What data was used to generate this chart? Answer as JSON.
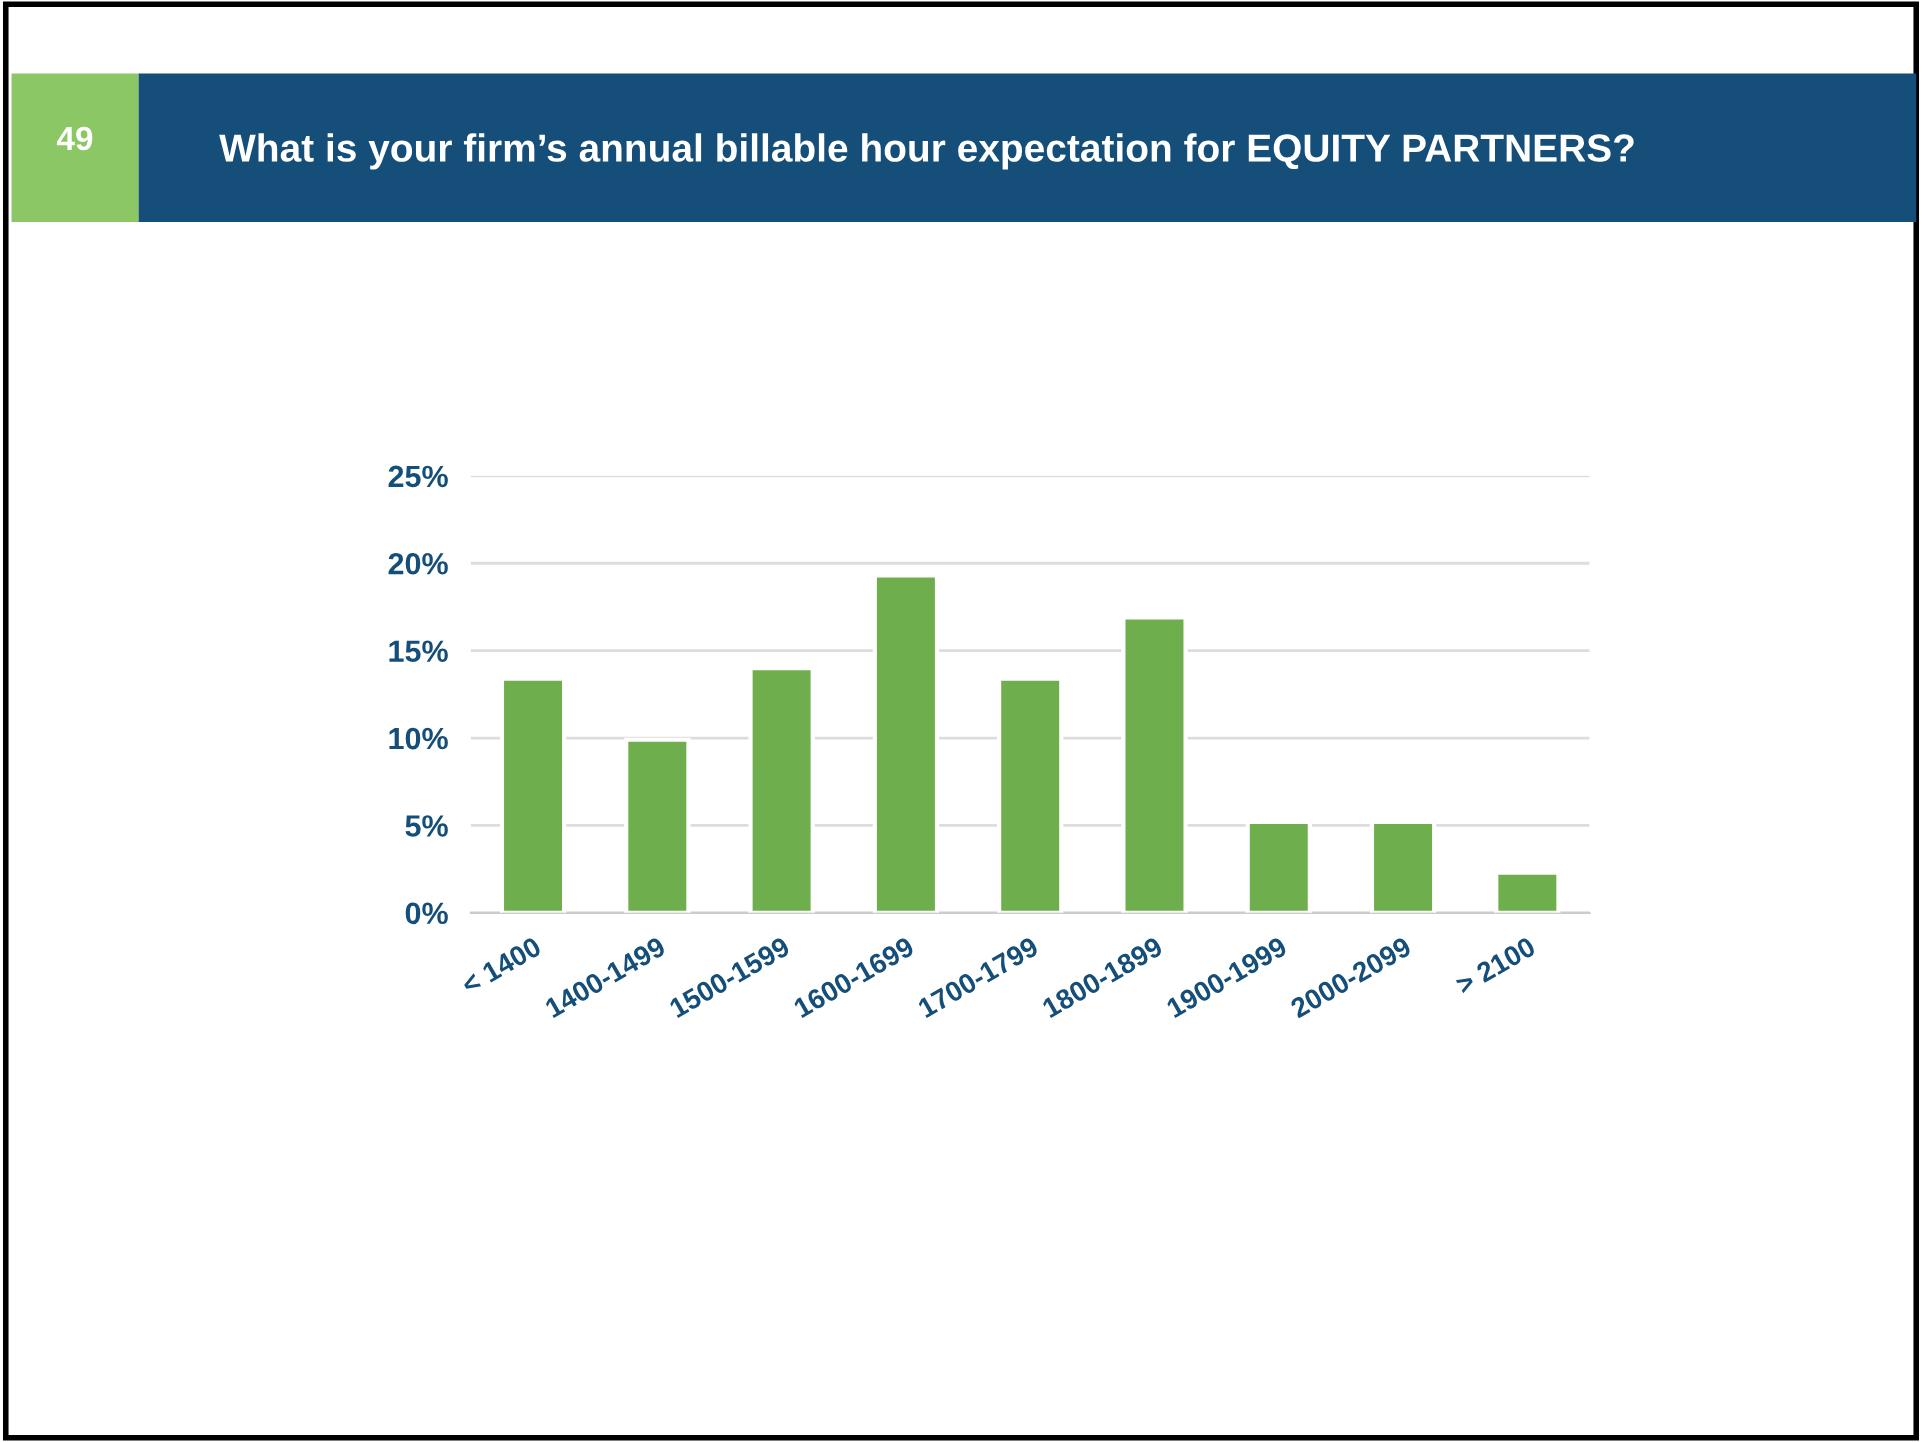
{
  "chart_data": {
    "type": "bar",
    "title": "What is your firm’s annual billable hour expectation for EQUITY PARTNERS?",
    "annotations": [
      "49"
    ],
    "categories": [
      "< 1400",
      "1400-1499",
      "1500-1599",
      "1600-1699",
      "1700-1799",
      "1800-1899",
      "1900-1999",
      "2000-2099",
      "> 2100"
    ],
    "values": [
      13.4,
      9.9,
      14.0,
      19.3,
      13.4,
      16.9,
      5.2,
      5.2,
      2.3
    ],
    "color": "#6fae4c",
    "ylim": [
      0,
      25
    ],
    "yticks": [
      {
        "value": 0,
        "label": "0%"
      },
      {
        "value": 5,
        "label": "5%"
      },
      {
        "value": 10,
        "label": "10%"
      },
      {
        "value": 15,
        "label": "15%"
      },
      {
        "value": 20,
        "label": "20%"
      },
      {
        "value": 25,
        "label": "25%"
      }
    ],
    "grid": "y",
    "legend": false
  }
}
